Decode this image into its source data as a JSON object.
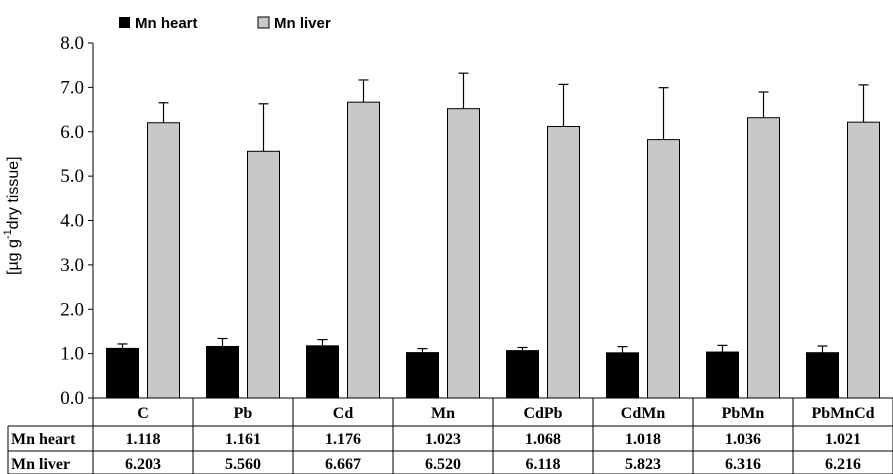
{
  "chart_data": {
    "type": "bar",
    "title": "",
    "xlabel": "",
    "ylabel": "[µg g-1dry tissue]",
    "ylabel_main": "[µg g",
    "ylabel_sup": "-1",
    "ylabel_rest": "dry tissue]",
    "ylim": [
      0,
      8
    ],
    "yticks": [
      "0.0",
      "1.0",
      "2.0",
      "3.0",
      "4.0",
      "5.0",
      "6.0",
      "7.0",
      "8.0"
    ],
    "categories": [
      "C",
      "Pb",
      "Cd",
      "Mn",
      "CdPb",
      "CdMn",
      "PbMn",
      "PbMnCd"
    ],
    "legend_position": "top-left",
    "grid": false,
    "series": [
      {
        "name": "Mn heart",
        "color": "#000000",
        "values": [
          1.118,
          1.161,
          1.176,
          1.023,
          1.068,
          1.018,
          1.036,
          1.021
        ],
        "labels": [
          "1.118",
          "1.161",
          "1.176",
          "1.023",
          "1.068",
          "1.018",
          "1.036",
          "1.021"
        ],
        "errors": [
          0.1,
          0.18,
          0.14,
          0.09,
          0.07,
          0.14,
          0.15,
          0.15
        ]
      },
      {
        "name": "Mn liver",
        "color": "#c8c8c8",
        "values": [
          6.203,
          5.56,
          6.667,
          6.52,
          6.118,
          5.823,
          6.316,
          6.216
        ],
        "labels": [
          "6.203",
          "5.560",
          "6.667",
          "6.520",
          "6.118",
          "5.823",
          "6.316",
          "6.216"
        ],
        "errors": [
          0.45,
          1.07,
          0.5,
          0.8,
          0.95,
          1.17,
          0.58,
          0.84
        ]
      }
    ]
  }
}
